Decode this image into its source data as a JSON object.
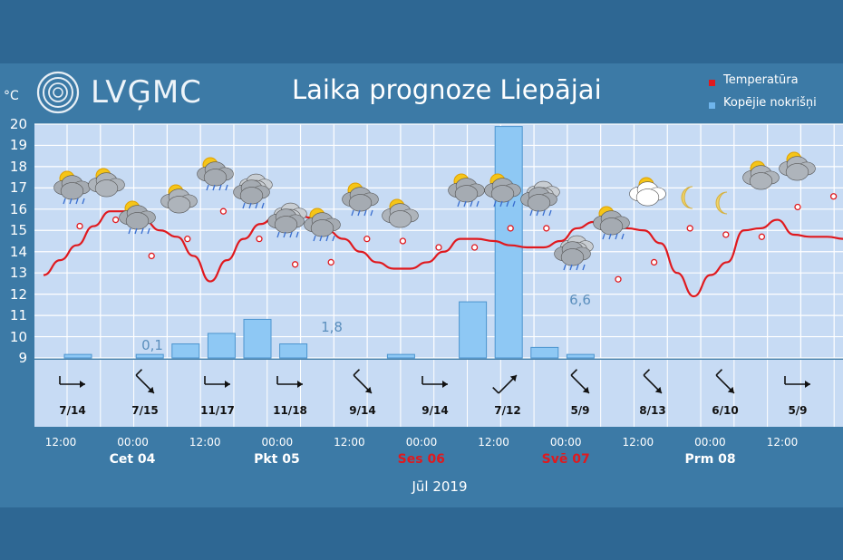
{
  "header": {
    "logo_text": "LVĢMC",
    "title": "Laika prognoze Liepājai",
    "unit": "°C",
    "legend": [
      {
        "label": "Temperatūra",
        "color": "#e0191e"
      },
      {
        "label": "Kopējie nokrišņi",
        "color": "#6fb5ec"
      }
    ]
  },
  "chart_data": {
    "type": "line",
    "y_ticks": [
      "20",
      "19",
      "18",
      "17",
      "16",
      "15",
      "14",
      "13",
      "12",
      "11",
      "10",
      "9"
    ],
    "ylim": [
      9,
      20
    ],
    "time_ticks": [
      "12:00",
      "00:00",
      "12:00",
      "00:00",
      "12:00",
      "00:00",
      "12:00",
      "00:00",
      "12:00",
      "00:00",
      "12:00"
    ],
    "days": [
      {
        "label": "Cet 04",
        "color": "#ffffff"
      },
      {
        "label": "Pkt 05",
        "color": "#ffffff"
      },
      {
        "label": "Ses 06",
        "color": "#e0191e"
      },
      {
        "label": "Svē 07",
        "color": "#e0191e"
      },
      {
        "label": "Prm 08",
        "color": "#ffffff"
      }
    ],
    "month": "Jūl 2019",
    "series": [
      {
        "name": "Temperatūra",
        "color": "#e0191e",
        "x_hours": [
          0,
          3,
          6,
          9,
          12,
          15,
          18,
          21,
          24,
          27,
          30,
          33,
          36,
          39,
          42,
          45,
          48,
          51,
          54,
          57,
          60,
          63,
          66,
          69,
          72,
          75,
          78,
          81,
          84,
          87,
          90,
          93,
          96,
          99,
          102,
          105,
          108,
          111,
          114,
          117,
          120,
          123,
          126,
          129,
          132,
          135,
          138,
          141,
          144
        ],
        "values": [
          12.9,
          13.6,
          14.3,
          15.2,
          15.9,
          15.9,
          15.5,
          15.0,
          14.7,
          13.8,
          12.6,
          13.6,
          14.6,
          15.3,
          15.7,
          15.9,
          15.6,
          15.0,
          14.6,
          14.0,
          13.5,
          13.2,
          13.2,
          13.5,
          14.0,
          14.6,
          14.6,
          14.5,
          14.3,
          14.2,
          14.2,
          14.5,
          15.1,
          15.4,
          15.3,
          15.1,
          15.0,
          14.4,
          13.0,
          11.9,
          12.9,
          13.5,
          15.0,
          15.1,
          15.5,
          14.8,
          14.7,
          14.7,
          14.6
        ],
        "marker_values": [
          15.2,
          15.5,
          13.8,
          14.6,
          15.9,
          14.6,
          13.4,
          13.5,
          14.6,
          14.5,
          14.2,
          14.2,
          15.1,
          15.1,
          14.5,
          12.7,
          13.5,
          15.1,
          14.8,
          14.7,
          16.1,
          16.6
        ]
      }
    ],
    "precipitation": {
      "name": "Kopējie nokrišņi",
      "color": "#6fb5ec",
      "labels": [
        "0,1",
        "1,8",
        "6,6"
      ],
      "values": [
        0.1,
        0.0,
        0.1,
        0.4,
        0.7,
        1.1,
        0.4,
        0.0,
        0.0,
        0.1,
        0.0,
        1.6,
        6.6,
        0.3,
        0.1,
        0.0,
        0.0
      ]
    },
    "wind": [
      "7/14",
      "7/15",
      "11/17",
      "11/18",
      "9/14",
      "9/14",
      "7/12",
      "5/9",
      "8/13",
      "6/10",
      "5/9"
    ],
    "weather_icons": [
      "partly-cloudy-rain-icon",
      "cloud-sun-icon",
      "partly-cloudy-rain-icon",
      "cloud-sun-icon",
      "partly-cloudy-rain-icon",
      "rain-cloud-icon",
      "rain-cloud-icon",
      "partly-cloudy-rain-icon",
      "partly-cloudy-rain-icon",
      "cloud-sun-icon",
      "partly-cloudy-rain-icon",
      "partly-cloudy-rain-icon",
      "rain-cloud-icon",
      "rain-cloud-icon",
      "partly-cloudy-rain-icon",
      "partly-cloudy-icon",
      "moon-icon",
      "moon-icon",
      "cloud-sun-icon",
      "cloud-sun-icon"
    ]
  }
}
